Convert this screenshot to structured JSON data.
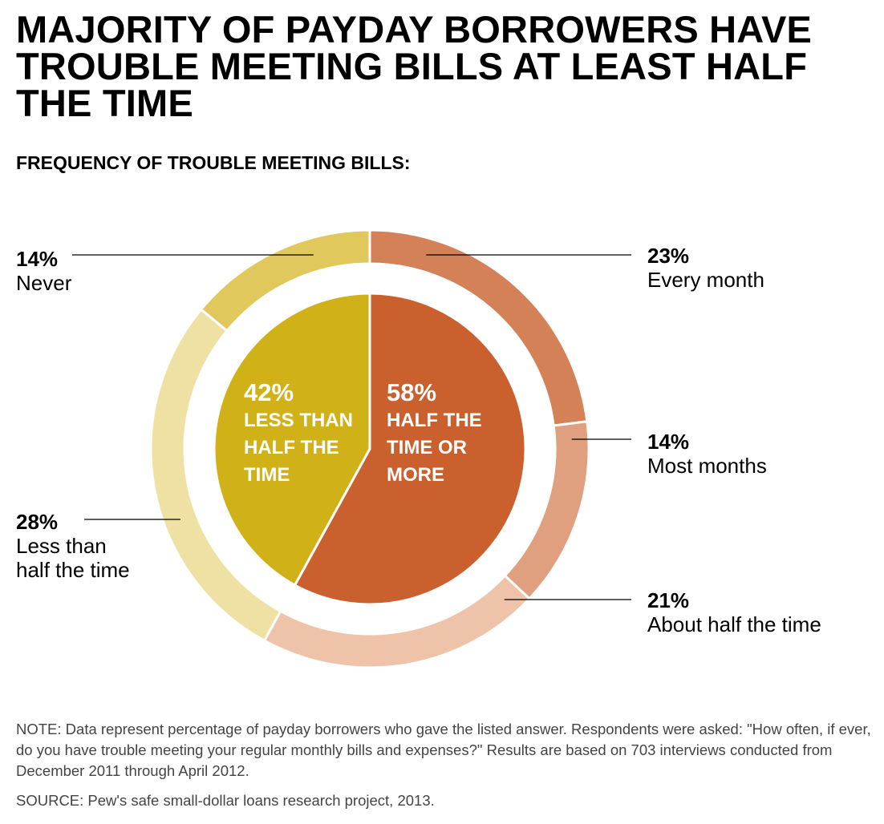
{
  "chart_data": {
    "type": "pie",
    "title": "MAJORITY OF PAYDAY BORROWERS HAVE TROUBLE MEETING BILLS AT LEAST HALF THE TIME",
    "subtitle": "FREQUENCY OF TROUBLE MEETING BILLS:",
    "inner_ring": [
      {
        "label_lines": [
          "HALF THE",
          "TIME OR",
          "MORE"
        ],
        "value": 58,
        "display": "58%",
        "color": "#c9602e"
      },
      {
        "label_lines": [
          "LESS THAN",
          "HALF THE",
          "TIME"
        ],
        "value": 42,
        "display": "42%",
        "color": "#d0b118"
      }
    ],
    "outer_ring": [
      {
        "label": "Every month",
        "value": 23,
        "display": "23%",
        "color": "#d58157"
      },
      {
        "label": "Most months",
        "value": 14,
        "display": "14%",
        "color": "#e09f7e"
      },
      {
        "label": "About half the time",
        "value": 21,
        "display": "21%",
        "color": "#efc3aa"
      },
      {
        "label_lines": [
          "Less than",
          "half the time"
        ],
        "value": 28,
        "display": "28%",
        "color": "#efe0a3"
      },
      {
        "label": "Never",
        "value": 14,
        "display": "14%",
        "color": "#e0c85c"
      }
    ],
    "note": "NOTE: Data represent percentage of payday borrowers who gave the listed answer. Respondents were asked: \"How often, if ever, do you have trouble meeting your regular monthly bills and expenses?\" Results are based on 703 interviews conducted from December 2011 through April 2012.",
    "source": "SOURCE: Pew's safe small-dollar loans research project, 2013."
  }
}
